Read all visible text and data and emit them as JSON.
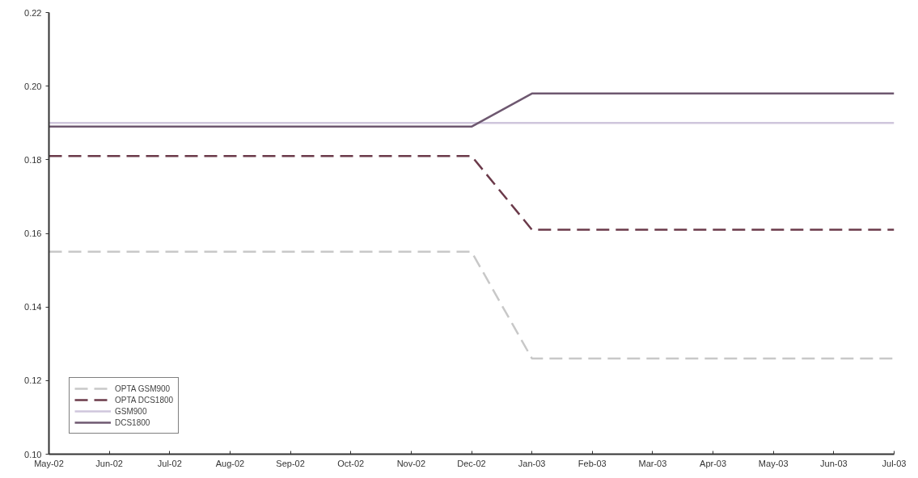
{
  "chart_data": {
    "type": "line",
    "categories": [
      "May-02",
      "Jun-02",
      "Jul-02",
      "Aug-02",
      "Sep-02",
      "Oct-02",
      "Nov-02",
      "Dec-02",
      "Jan-03",
      "Feb-03",
      "Mar-03",
      "Apr-03",
      "May-03",
      "Jun-03",
      "Jul-03"
    ],
    "series": [
      {
        "name": "OPTA GSM900",
        "color": "#c8c8c8",
        "line_style": "dashed",
        "values": [
          0.155,
          0.155,
          0.155,
          0.155,
          0.155,
          0.155,
          0.155,
          0.155,
          0.126,
          0.126,
          0.126,
          0.126,
          0.126,
          0.126,
          0.126
        ]
      },
      {
        "name": "OPTA DCS1800",
        "color": "#6b3a4a",
        "line_style": "dashed",
        "values": [
          0.181,
          0.181,
          0.181,
          0.181,
          0.181,
          0.181,
          0.181,
          0.181,
          0.161,
          0.161,
          0.161,
          0.161,
          0.161,
          0.161,
          0.161
        ]
      },
      {
        "name": "GSM900",
        "color": "#cfc6dc",
        "line_style": "solid",
        "values": [
          0.19,
          0.19,
          0.19,
          0.19,
          0.19,
          0.19,
          0.19,
          0.19,
          0.19,
          0.19,
          0.19,
          0.19,
          0.19,
          0.19,
          0.19
        ]
      },
      {
        "name": "DCS1800",
        "color": "#6e5870",
        "line_style": "solid",
        "values": [
          0.189,
          0.189,
          0.189,
          0.189,
          0.189,
          0.189,
          0.189,
          0.189,
          0.198,
          0.198,
          0.198,
          0.198,
          0.198,
          0.198,
          0.198
        ]
      }
    ],
    "ylim": [
      0.1,
      0.22
    ],
    "yticks": [
      {
        "value": 0.1,
        "label": "0.10"
      },
      {
        "value": 0.12,
        "label": "0.12"
      },
      {
        "value": 0.14,
        "label": "0.14"
      },
      {
        "value": 0.16,
        "label": "0.16"
      },
      {
        "value": 0.18,
        "label": "0.18"
      },
      {
        "value": 0.2,
        "label": "0.20"
      },
      {
        "value": 0.22,
        "label": "0.22"
      }
    ],
    "grid": false,
    "legend": "bottom left",
    "marker": "none"
  }
}
